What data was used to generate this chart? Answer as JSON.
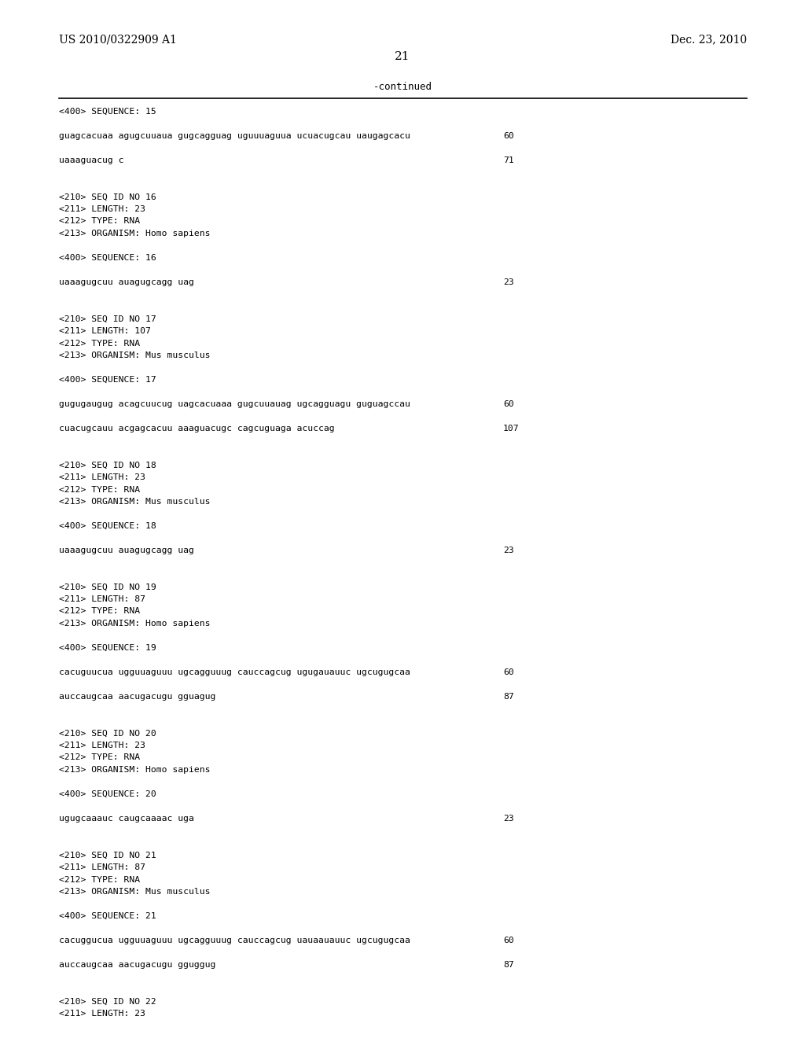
{
  "header_left": "US 2010/0322909 A1",
  "header_right": "Dec. 23, 2010",
  "page_number": "21",
  "continued_text": "-continued",
  "background_color": "#ffffff",
  "text_color": "#000000",
  "content_lines": [
    {
      "text": "<400> SEQUENCE: 15",
      "num": null
    },
    {
      "text": "",
      "num": null
    },
    {
      "text": "guagcacuaa agugcuuaua gugcagguag uguuuaguua ucuacugcau uaugagcacu",
      "num": "60"
    },
    {
      "text": "",
      "num": null
    },
    {
      "text": "uaaaguacug c",
      "num": "71"
    },
    {
      "text": "",
      "num": null
    },
    {
      "text": "",
      "num": null
    },
    {
      "text": "<210> SEQ ID NO 16",
      "num": null
    },
    {
      "text": "<211> LENGTH: 23",
      "num": null
    },
    {
      "text": "<212> TYPE: RNA",
      "num": null
    },
    {
      "text": "<213> ORGANISM: Homo sapiens",
      "num": null
    },
    {
      "text": "",
      "num": null
    },
    {
      "text": "<400> SEQUENCE: 16",
      "num": null
    },
    {
      "text": "",
      "num": null
    },
    {
      "text": "uaaagugcuu auagugcagg uag",
      "num": "23"
    },
    {
      "text": "",
      "num": null
    },
    {
      "text": "",
      "num": null
    },
    {
      "text": "<210> SEQ ID NO 17",
      "num": null
    },
    {
      "text": "<211> LENGTH: 107",
      "num": null
    },
    {
      "text": "<212> TYPE: RNA",
      "num": null
    },
    {
      "text": "<213> ORGANISM: Mus musculus",
      "num": null
    },
    {
      "text": "",
      "num": null
    },
    {
      "text": "<400> SEQUENCE: 17",
      "num": null
    },
    {
      "text": "",
      "num": null
    },
    {
      "text": "gugugaugug acagcuucug uagcacuaaa gugcuuauag ugcagguagu guguagccau",
      "num": "60"
    },
    {
      "text": "",
      "num": null
    },
    {
      "text": "cuacugcauu acgagcacuu aaaguacugc cagcuguaga acuccag",
      "num": "107"
    },
    {
      "text": "",
      "num": null
    },
    {
      "text": "",
      "num": null
    },
    {
      "text": "<210> SEQ ID NO 18",
      "num": null
    },
    {
      "text": "<211> LENGTH: 23",
      "num": null
    },
    {
      "text": "<212> TYPE: RNA",
      "num": null
    },
    {
      "text": "<213> ORGANISM: Mus musculus",
      "num": null
    },
    {
      "text": "",
      "num": null
    },
    {
      "text": "<400> SEQUENCE: 18",
      "num": null
    },
    {
      "text": "",
      "num": null
    },
    {
      "text": "uaaagugcuu auagugcagg uag",
      "num": "23"
    },
    {
      "text": "",
      "num": null
    },
    {
      "text": "",
      "num": null
    },
    {
      "text": "<210> SEQ ID NO 19",
      "num": null
    },
    {
      "text": "<211> LENGTH: 87",
      "num": null
    },
    {
      "text": "<212> TYPE: RNA",
      "num": null
    },
    {
      "text": "<213> ORGANISM: Homo sapiens",
      "num": null
    },
    {
      "text": "",
      "num": null
    },
    {
      "text": "<400> SEQUENCE: 19",
      "num": null
    },
    {
      "text": "",
      "num": null
    },
    {
      "text": "cacuguucua ugguuaguuu ugcagguuug cauccagcug ugugauauuc ugcugugcaa",
      "num": "60"
    },
    {
      "text": "",
      "num": null
    },
    {
      "text": "auccaugcaa aacugacugu gguagug",
      "num": "87"
    },
    {
      "text": "",
      "num": null
    },
    {
      "text": "",
      "num": null
    },
    {
      "text": "<210> SEQ ID NO 20",
      "num": null
    },
    {
      "text": "<211> LENGTH: 23",
      "num": null
    },
    {
      "text": "<212> TYPE: RNA",
      "num": null
    },
    {
      "text": "<213> ORGANISM: Homo sapiens",
      "num": null
    },
    {
      "text": "",
      "num": null
    },
    {
      "text": "<400> SEQUENCE: 20",
      "num": null
    },
    {
      "text": "",
      "num": null
    },
    {
      "text": "ugugcaaauc caugcaaaac uga",
      "num": "23"
    },
    {
      "text": "",
      "num": null
    },
    {
      "text": "",
      "num": null
    },
    {
      "text": "<210> SEQ ID NO 21",
      "num": null
    },
    {
      "text": "<211> LENGTH: 87",
      "num": null
    },
    {
      "text": "<212> TYPE: RNA",
      "num": null
    },
    {
      "text": "<213> ORGANISM: Mus musculus",
      "num": null
    },
    {
      "text": "",
      "num": null
    },
    {
      "text": "<400> SEQUENCE: 21",
      "num": null
    },
    {
      "text": "",
      "num": null
    },
    {
      "text": "cacuggucua ugguuaguuu ugcagguuug cauccagcug uauaauauuc ugcugugcaa",
      "num": "60"
    },
    {
      "text": "",
      "num": null
    },
    {
      "text": "auccaugcaa aacugacugu gguggug",
      "num": "87"
    },
    {
      "text": "",
      "num": null
    },
    {
      "text": "",
      "num": null
    },
    {
      "text": "<210> SEQ ID NO 22",
      "num": null
    },
    {
      "text": "<211> LENGTH: 23",
      "num": null
    }
  ]
}
